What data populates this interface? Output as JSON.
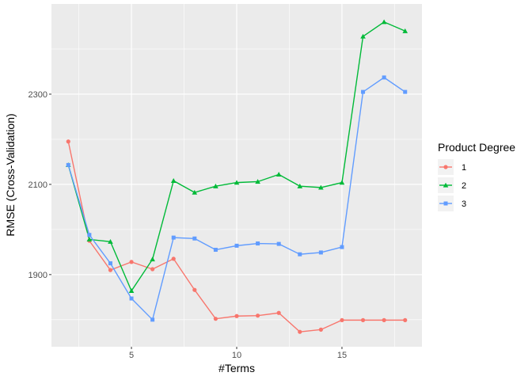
{
  "chart_data": {
    "type": "line",
    "xlabel": "#Terms",
    "ylabel": "RMSE (Cross-Validation)",
    "xlim": [
      1.2,
      18.8
    ],
    "ylim": [
      1740,
      2500
    ],
    "x_ticks": [
      5,
      10,
      15
    ],
    "y_ticks": [
      1900,
      2100,
      2300
    ],
    "x_minor": [
      2.5,
      7.5,
      12.5,
      17.5
    ],
    "y_minor": [
      1800,
      2000,
      2200,
      2400
    ],
    "legend_title": "Product Degree",
    "legend_position": "right",
    "grid": true,
    "panel_background": "#EBEBEB",
    "series": [
      {
        "name": "1",
        "color": "#F8766D",
        "marker": "circle",
        "x": [
          2,
          3,
          4,
          5,
          6,
          7,
          8,
          9,
          10,
          11,
          12,
          13,
          14,
          15,
          16,
          17,
          18
        ],
        "y": [
          2195,
          1975,
          1910,
          1928,
          1912,
          1935,
          1866,
          1802,
          1808,
          1809,
          1815,
          1773,
          1778,
          1799,
          1799,
          1799,
          1799
        ]
      },
      {
        "name": "2",
        "color": "#00BA38",
        "marker": "triangle",
        "x": [
          2,
          3,
          4,
          5,
          6,
          7,
          8,
          9,
          10,
          11,
          12,
          13,
          14,
          15,
          16,
          17,
          18
        ],
        "y": [
          2143,
          1978,
          1973,
          1864,
          1934,
          2108,
          2082,
          2096,
          2104,
          2106,
          2122,
          2096,
          2093,
          2104,
          2428,
          2460,
          2440
        ]
      },
      {
        "name": "3",
        "color": "#619CFF",
        "marker": "square",
        "x": [
          2,
          3,
          4,
          5,
          6,
          7,
          8,
          9,
          10,
          11,
          12,
          13,
          14,
          15,
          16,
          17,
          18
        ],
        "y": [
          2143,
          1988,
          1925,
          1847,
          1800,
          1982,
          1980,
          1955,
          1964,
          1969,
          1968,
          1945,
          1949,
          1961,
          2305,
          2337,
          2305
        ]
      }
    ]
  }
}
